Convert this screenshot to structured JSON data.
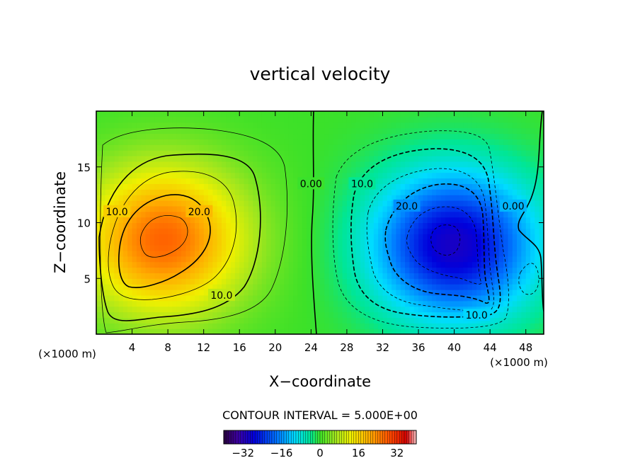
{
  "chart_data": {
    "type": "heatmap",
    "title": "vertical velocity",
    "xlabel": "X−coordinate",
    "ylabel": "Z−coordinate",
    "x_unit_label": "(×1000 m)",
    "z_unit_label": "(×1000 m)",
    "xlim": [
      0,
      50
    ],
    "ylim": [
      0,
      20
    ],
    "x_ticks": [
      4,
      8,
      12,
      16,
      20,
      24,
      28,
      32,
      36,
      40,
      44,
      48
    ],
    "y_ticks": [
      5,
      10,
      15
    ],
    "contour_interval_text": "CONTOUR INTERVAL = 5.000E+00",
    "contour_labels": [
      {
        "text": "10.0",
        "x": 2.3,
        "z": 11.0
      },
      {
        "text": "20.0",
        "x": 11.5,
        "z": 11.0
      },
      {
        "text": "10.0",
        "x": 14.0,
        "z": 3.5
      },
      {
        "text": "0.00",
        "x": 24.0,
        "z": 13.5
      },
      {
        "text": "10.0",
        "x": 29.7,
        "z": 13.5
      },
      {
        "text": "20.0",
        "x": 34.7,
        "z": 11.5
      },
      {
        "text": "10.0",
        "x": 42.5,
        "z": 1.7
      },
      {
        "text": "0.00",
        "x": 46.6,
        "z": 11.5
      }
    ],
    "colorbar": {
      "ticks": [
        "−32",
        "−16",
        "0",
        "16",
        "32"
      ],
      "tick_values": [
        -32,
        -16,
        0,
        16,
        32
      ],
      "range": [
        -40,
        40
      ]
    },
    "field_features": [
      {
        "sign": "positive",
        "center_x": 7.5,
        "center_z": 8.5,
        "peak": 27
      },
      {
        "sign": "negative",
        "center_x": 40.0,
        "center_z": 8.0,
        "peak": -30
      }
    ]
  }
}
